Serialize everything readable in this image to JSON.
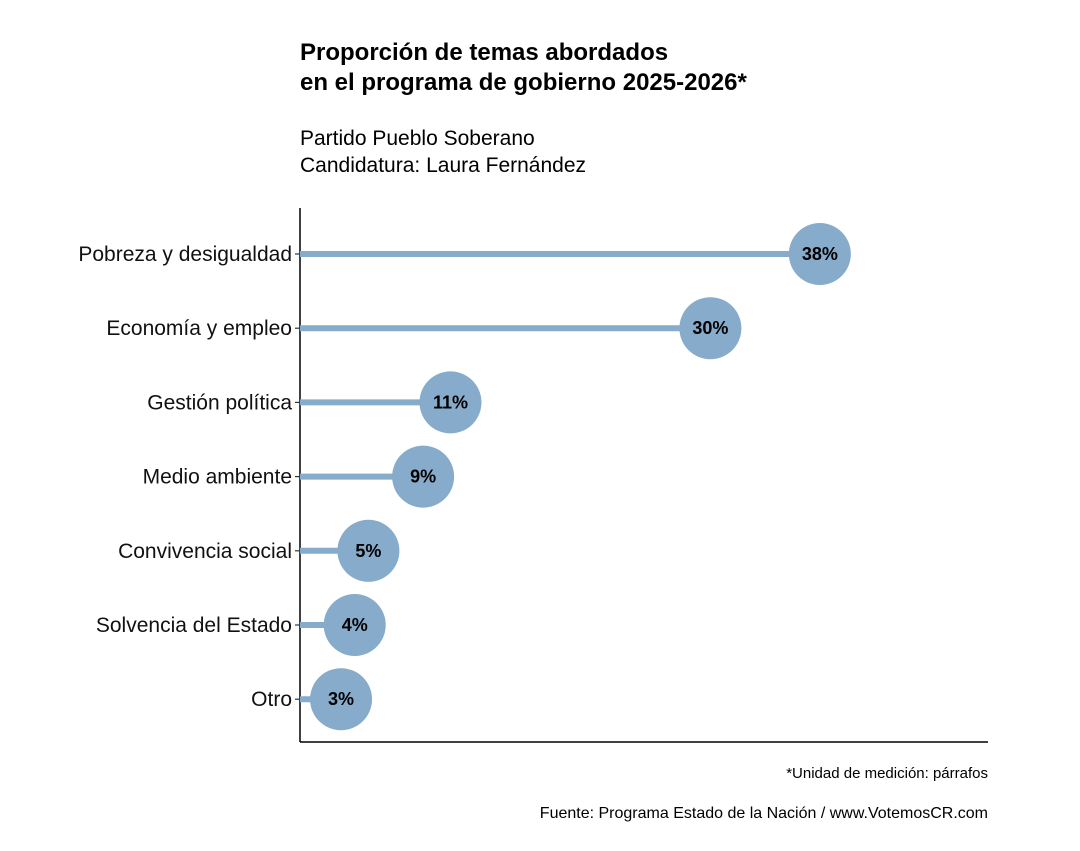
{
  "chart_data": {
    "type": "lollipop",
    "title_lines": [
      "Proporción de temas abordados",
      "en el programa de gobierno 2025-2026*"
    ],
    "subtitle_lines": [
      "Partido Pueblo Soberano",
      "Candidatura: Laura Fernández"
    ],
    "categories": [
      "Pobreza y desigualdad",
      "Economía y empleo",
      "Gestión política",
      "Medio ambiente",
      "Convivencia social",
      "Solvencia del Estado",
      "Otro"
    ],
    "values": [
      38,
      30,
      11,
      9,
      5,
      4,
      3
    ],
    "labels": [
      "38%",
      "30%",
      "11%",
      "9%",
      "5%",
      "4%",
      "3%"
    ],
    "xlim": [
      0,
      50
    ],
    "unit": "%",
    "grid": false,
    "color": "#86abcb",
    "note": "*Unidad de medición: párrafos",
    "source": "Fuente: Programa Estado de la Nación / www.VotemosCR.com"
  }
}
